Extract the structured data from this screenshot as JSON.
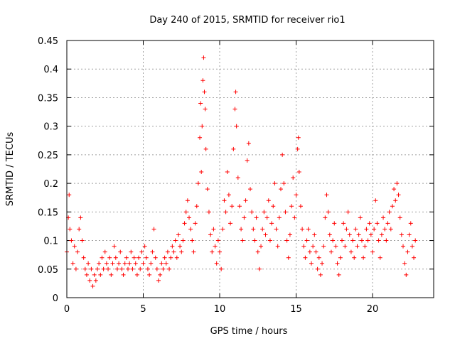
{
  "chart_data": {
    "type": "scatter",
    "title": "Day 240 of 2015, SRMTID for receiver rio1",
    "xlabel": "GPS time / hours",
    "ylabel": "SRMTID / TECUs",
    "xlim": [
      0,
      24
    ],
    "ylim": [
      0,
      0.45
    ],
    "x_ticks": [
      0,
      5,
      10,
      15,
      20
    ],
    "y_ticks": [
      0,
      0.05,
      0.1,
      0.15,
      0.2,
      0.25,
      0.3,
      0.35,
      0.4,
      0.45
    ],
    "x_tick_labels": [
      "0",
      "5",
      "10",
      "15",
      "20"
    ],
    "y_tick_labels": [
      "0",
      "0.05",
      "0.1",
      "0.15",
      "0.2",
      "0.25",
      "0.3",
      "0.35",
      "0.4",
      "0.45"
    ],
    "grid": true,
    "marker": "+",
    "color": "#ff0000",
    "series": [
      {
        "name": "SRMTID",
        "points": [
          [
            0.0,
            0.08
          ],
          [
            0.1,
            0.14
          ],
          [
            0.15,
            0.18
          ],
          [
            0.2,
            0.12
          ],
          [
            0.3,
            0.1
          ],
          [
            0.4,
            0.06
          ],
          [
            0.5,
            0.09
          ],
          [
            0.6,
            0.05
          ],
          [
            0.7,
            0.08
          ],
          [
            0.8,
            0.12
          ],
          [
            0.9,
            0.14
          ],
          [
            1.0,
            0.1
          ],
          [
            1.1,
            0.07
          ],
          [
            1.2,
            0.05
          ],
          [
            1.3,
            0.04
          ],
          [
            1.4,
            0.06
          ],
          [
            1.5,
            0.03
          ],
          [
            1.6,
            0.05
          ],
          [
            1.7,
            0.02
          ],
          [
            1.8,
            0.04
          ],
          [
            1.9,
            0.03
          ],
          [
            2.0,
            0.05
          ],
          [
            2.1,
            0.06
          ],
          [
            2.2,
            0.04
          ],
          [
            2.3,
            0.07
          ],
          [
            2.4,
            0.05
          ],
          [
            2.5,
            0.08
          ],
          [
            2.6,
            0.06
          ],
          [
            2.7,
            0.05
          ],
          [
            2.8,
            0.07
          ],
          [
            2.9,
            0.04
          ],
          [
            3.0,
            0.06
          ],
          [
            3.1,
            0.09
          ],
          [
            3.2,
            0.07
          ],
          [
            3.3,
            0.05
          ],
          [
            3.4,
            0.06
          ],
          [
            3.5,
            0.08
          ],
          [
            3.6,
            0.05
          ],
          [
            3.7,
            0.04
          ],
          [
            3.8,
            0.06
          ],
          [
            3.9,
            0.07
          ],
          [
            4.0,
            0.05
          ],
          [
            4.1,
            0.06
          ],
          [
            4.2,
            0.08
          ],
          [
            4.3,
            0.05
          ],
          [
            4.4,
            0.07
          ],
          [
            4.5,
            0.06
          ],
          [
            4.6,
            0.04
          ],
          [
            4.7,
            0.07
          ],
          [
            4.8,
            0.05
          ],
          [
            4.9,
            0.08
          ],
          [
            5.0,
            0.06
          ],
          [
            5.1,
            0.09
          ],
          [
            5.2,
            0.07
          ],
          [
            5.3,
            0.05
          ],
          [
            5.4,
            0.04
          ],
          [
            5.5,
            0.06
          ],
          [
            5.6,
            0.08
          ],
          [
            5.7,
            0.12
          ],
          [
            5.8,
            0.07
          ],
          [
            5.9,
            0.05
          ],
          [
            6.0,
            0.03
          ],
          [
            6.1,
            0.04
          ],
          [
            6.2,
            0.06
          ],
          [
            6.3,
            0.05
          ],
          [
            6.4,
            0.07
          ],
          [
            6.5,
            0.06
          ],
          [
            6.6,
            0.08
          ],
          [
            6.7,
            0.05
          ],
          [
            6.8,
            0.07
          ],
          [
            6.9,
            0.09
          ],
          [
            7.0,
            0.08
          ],
          [
            7.1,
            0.1
          ],
          [
            7.2,
            0.07
          ],
          [
            7.3,
            0.11
          ],
          [
            7.4,
            0.09
          ],
          [
            7.5,
            0.08
          ],
          [
            7.6,
            0.1
          ],
          [
            7.7,
            0.13
          ],
          [
            7.8,
            0.15
          ],
          [
            7.9,
            0.17
          ],
          [
            8.0,
            0.14
          ],
          [
            8.1,
            0.12
          ],
          [
            8.2,
            0.1
          ],
          [
            8.3,
            0.08
          ],
          [
            8.4,
            0.13
          ],
          [
            8.5,
            0.16
          ],
          [
            8.6,
            0.2
          ],
          [
            8.7,
            0.28
          ],
          [
            8.75,
            0.34
          ],
          [
            8.8,
            0.22
          ],
          [
            8.85,
            0.3
          ],
          [
            8.9,
            0.38
          ],
          [
            8.95,
            0.42
          ],
          [
            9.0,
            0.36
          ],
          [
            9.05,
            0.33
          ],
          [
            9.1,
            0.26
          ],
          [
            9.2,
            0.19
          ],
          [
            9.3,
            0.15
          ],
          [
            9.4,
            0.11
          ],
          [
            9.5,
            0.08
          ],
          [
            9.6,
            0.12
          ],
          [
            9.7,
            0.09
          ],
          [
            9.8,
            0.06
          ],
          [
            9.9,
            0.1
          ],
          [
            10.0,
            0.08
          ],
          [
            10.1,
            0.05
          ],
          [
            10.2,
            0.12
          ],
          [
            10.3,
            0.17
          ],
          [
            10.4,
            0.15
          ],
          [
            10.5,
            0.22
          ],
          [
            10.6,
            0.18
          ],
          [
            10.7,
            0.13
          ],
          [
            10.8,
            0.16
          ],
          [
            10.9,
            0.26
          ],
          [
            11.0,
            0.33
          ],
          [
            11.05,
            0.36
          ],
          [
            11.1,
            0.3
          ],
          [
            11.2,
            0.21
          ],
          [
            11.3,
            0.16
          ],
          [
            11.4,
            0.12
          ],
          [
            11.5,
            0.1
          ],
          [
            11.6,
            0.14
          ],
          [
            11.7,
            0.17
          ],
          [
            11.8,
            0.24
          ],
          [
            11.9,
            0.27
          ],
          [
            12.0,
            0.19
          ],
          [
            12.1,
            0.15
          ],
          [
            12.2,
            0.12
          ],
          [
            12.3,
            0.1
          ],
          [
            12.4,
            0.14
          ],
          [
            12.5,
            0.08
          ],
          [
            12.6,
            0.05
          ],
          [
            12.7,
            0.09
          ],
          [
            12.8,
            0.12
          ],
          [
            12.9,
            0.15
          ],
          [
            13.0,
            0.11
          ],
          [
            13.1,
            0.14
          ],
          [
            13.2,
            0.17
          ],
          [
            13.3,
            0.1
          ],
          [
            13.4,
            0.13
          ],
          [
            13.5,
            0.16
          ],
          [
            13.6,
            0.2
          ],
          [
            13.7,
            0.12
          ],
          [
            13.8,
            0.09
          ],
          [
            13.9,
            0.14
          ],
          [
            14.0,
            0.19
          ],
          [
            14.1,
            0.25
          ],
          [
            14.2,
            0.2
          ],
          [
            14.3,
            0.15
          ],
          [
            14.4,
            0.1
          ],
          [
            14.5,
            0.07
          ],
          [
            14.6,
            0.11
          ],
          [
            14.7,
            0.16
          ],
          [
            14.8,
            0.21
          ],
          [
            14.9,
            0.14
          ],
          [
            15.0,
            0.18
          ],
          [
            15.1,
            0.26
          ],
          [
            15.15,
            0.28
          ],
          [
            15.2,
            0.22
          ],
          [
            15.3,
            0.16
          ],
          [
            15.4,
            0.12
          ],
          [
            15.5,
            0.09
          ],
          [
            15.6,
            0.07
          ],
          [
            15.7,
            0.1
          ],
          [
            15.8,
            0.12
          ],
          [
            15.9,
            0.08
          ],
          [
            16.0,
            0.06
          ],
          [
            16.1,
            0.09
          ],
          [
            16.2,
            0.11
          ],
          [
            16.3,
            0.08
          ],
          [
            16.4,
            0.05
          ],
          [
            16.5,
            0.07
          ],
          [
            16.6,
            0.04
          ],
          [
            16.7,
            0.06
          ],
          [
            16.8,
            0.09
          ],
          [
            16.9,
            0.14
          ],
          [
            17.0,
            0.18
          ],
          [
            17.1,
            0.15
          ],
          [
            17.2,
            0.11
          ],
          [
            17.3,
            0.08
          ],
          [
            17.4,
            0.1
          ],
          [
            17.5,
            0.13
          ],
          [
            17.6,
            0.09
          ],
          [
            17.7,
            0.06
          ],
          [
            17.8,
            0.04
          ],
          [
            17.9,
            0.07
          ],
          [
            18.0,
            0.1
          ],
          [
            18.1,
            0.13
          ],
          [
            18.2,
            0.09
          ],
          [
            18.3,
            0.12
          ],
          [
            18.4,
            0.15
          ],
          [
            18.5,
            0.11
          ],
          [
            18.6,
            0.08
          ],
          [
            18.7,
            0.1
          ],
          [
            18.8,
            0.07
          ],
          [
            18.9,
            0.12
          ],
          [
            19.0,
            0.09
          ],
          [
            19.1,
            0.11
          ],
          [
            19.2,
            0.14
          ],
          [
            19.3,
            0.1
          ],
          [
            19.4,
            0.07
          ],
          [
            19.5,
            0.09
          ],
          [
            19.6,
            0.12
          ],
          [
            19.7,
            0.1
          ],
          [
            19.8,
            0.13
          ],
          [
            19.9,
            0.11
          ],
          [
            20.0,
            0.08
          ],
          [
            20.1,
            0.12
          ],
          [
            20.2,
            0.17
          ],
          [
            20.3,
            0.13
          ],
          [
            20.4,
            0.1
          ],
          [
            20.5,
            0.07
          ],
          [
            20.6,
            0.11
          ],
          [
            20.7,
            0.14
          ],
          [
            20.8,
            0.12
          ],
          [
            20.9,
            0.1
          ],
          [
            21.0,
            0.13
          ],
          [
            21.1,
            0.15
          ],
          [
            21.2,
            0.12
          ],
          [
            21.3,
            0.16
          ],
          [
            21.4,
            0.19
          ],
          [
            21.5,
            0.17
          ],
          [
            21.6,
            0.2
          ],
          [
            21.7,
            0.18
          ],
          [
            21.8,
            0.14
          ],
          [
            21.9,
            0.11
          ],
          [
            22.0,
            0.09
          ],
          [
            22.1,
            0.06
          ],
          [
            22.2,
            0.04
          ],
          [
            22.3,
            0.08
          ],
          [
            22.4,
            0.11
          ],
          [
            22.5,
            0.13
          ],
          [
            22.6,
            0.09
          ],
          [
            22.7,
            0.07
          ],
          [
            22.8,
            0.1
          ]
        ]
      }
    ]
  }
}
